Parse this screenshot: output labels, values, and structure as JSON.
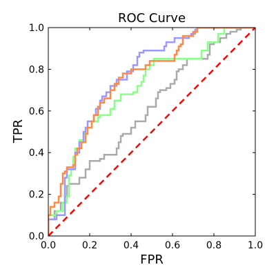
{
  "chart_data": {
    "type": "line",
    "title": "ROC Curve",
    "xlabel": "FPR",
    "ylabel": "TPR",
    "xlim": [
      0.0,
      1.0
    ],
    "ylim": [
      0.0,
      1.0
    ],
    "xticks": [
      "0.0",
      "0.2",
      "0.4",
      "0.6",
      "0.8",
      "1.0"
    ],
    "yticks": [
      "0.0",
      "0.2",
      "0.4",
      "0.6",
      "0.8",
      "1.0"
    ],
    "grid": false,
    "series": [
      {
        "color": "#aaaaaa",
        "step": true,
        "points": [
          [
            0.0,
            0.0
          ],
          [
            0.0,
            0.08
          ],
          [
            0.03,
            0.08
          ],
          [
            0.03,
            0.12
          ],
          [
            0.06,
            0.12
          ],
          [
            0.06,
            0.16
          ],
          [
            0.08,
            0.16
          ],
          [
            0.08,
            0.19
          ],
          [
            0.09,
            0.19
          ],
          [
            0.09,
            0.24
          ],
          [
            0.1,
            0.24
          ],
          [
            0.1,
            0.25
          ],
          [
            0.15,
            0.25
          ],
          [
            0.15,
            0.28
          ],
          [
            0.18,
            0.28
          ],
          [
            0.18,
            0.32
          ],
          [
            0.2,
            0.32
          ],
          [
            0.2,
            0.36
          ],
          [
            0.25,
            0.36
          ],
          [
            0.25,
            0.37
          ],
          [
            0.27,
            0.37
          ],
          [
            0.27,
            0.39
          ],
          [
            0.33,
            0.39
          ],
          [
            0.33,
            0.42
          ],
          [
            0.34,
            0.42
          ],
          [
            0.34,
            0.45
          ],
          [
            0.35,
            0.45
          ],
          [
            0.35,
            0.48
          ],
          [
            0.36,
            0.48
          ],
          [
            0.36,
            0.49
          ],
          [
            0.4,
            0.49
          ],
          [
            0.4,
            0.52
          ],
          [
            0.42,
            0.52
          ],
          [
            0.42,
            0.55
          ],
          [
            0.47,
            0.55
          ],
          [
            0.47,
            0.58
          ],
          [
            0.48,
            0.58
          ],
          [
            0.48,
            0.62
          ],
          [
            0.52,
            0.62
          ],
          [
            0.52,
            0.66
          ],
          [
            0.53,
            0.66
          ],
          [
            0.53,
            0.69
          ],
          [
            0.54,
            0.69
          ],
          [
            0.54,
            0.7
          ],
          [
            0.57,
            0.7
          ],
          [
            0.57,
            0.71
          ],
          [
            0.59,
            0.71
          ],
          [
            0.59,
            0.73
          ],
          [
            0.61,
            0.73
          ],
          [
            0.61,
            0.75
          ],
          [
            0.62,
            0.75
          ],
          [
            0.62,
            0.79
          ],
          [
            0.63,
            0.79
          ],
          [
            0.63,
            0.8
          ],
          [
            0.65,
            0.8
          ],
          [
            0.65,
            0.82
          ],
          [
            0.67,
            0.82
          ],
          [
            0.67,
            0.85
          ],
          [
            0.77,
            0.85
          ],
          [
            0.77,
            0.87
          ],
          [
            0.78,
            0.87
          ],
          [
            0.78,
            0.89
          ],
          [
            0.78,
            0.92
          ],
          [
            0.8,
            0.92
          ],
          [
            0.8,
            0.93
          ],
          [
            0.83,
            0.93
          ],
          [
            0.83,
            0.95
          ],
          [
            0.86,
            0.95
          ],
          [
            0.86,
            0.97
          ],
          [
            0.88,
            0.97
          ],
          [
            0.88,
            0.98
          ],
          [
            0.91,
            0.98
          ],
          [
            0.91,
            0.99
          ],
          [
            0.93,
            0.99
          ],
          [
            0.93,
            1.0
          ],
          [
            1.0,
            1.0
          ]
        ]
      },
      {
        "color": "#88ff88",
        "step": true,
        "points": [
          [
            0.0,
            0.0
          ],
          [
            0.0,
            0.1
          ],
          [
            0.04,
            0.1
          ],
          [
            0.04,
            0.12
          ],
          [
            0.07,
            0.12
          ],
          [
            0.07,
            0.16
          ],
          [
            0.09,
            0.16
          ],
          [
            0.09,
            0.19
          ],
          [
            0.1,
            0.19
          ],
          [
            0.1,
            0.29
          ],
          [
            0.11,
            0.29
          ],
          [
            0.11,
            0.32
          ],
          [
            0.12,
            0.32
          ],
          [
            0.12,
            0.38
          ],
          [
            0.13,
            0.38
          ],
          [
            0.13,
            0.42
          ],
          [
            0.15,
            0.42
          ],
          [
            0.15,
            0.46
          ],
          [
            0.17,
            0.46
          ],
          [
            0.17,
            0.49
          ],
          [
            0.18,
            0.49
          ],
          [
            0.18,
            0.52
          ],
          [
            0.21,
            0.52
          ],
          [
            0.21,
            0.55
          ],
          [
            0.24,
            0.55
          ],
          [
            0.24,
            0.57
          ],
          [
            0.25,
            0.57
          ],
          [
            0.25,
            0.58
          ],
          [
            0.3,
            0.58
          ],
          [
            0.3,
            0.61
          ],
          [
            0.32,
            0.61
          ],
          [
            0.32,
            0.65
          ],
          [
            0.35,
            0.65
          ],
          [
            0.35,
            0.68
          ],
          [
            0.41,
            0.68
          ],
          [
            0.41,
            0.69
          ],
          [
            0.43,
            0.69
          ],
          [
            0.43,
            0.72
          ],
          [
            0.45,
            0.72
          ],
          [
            0.45,
            0.74
          ],
          [
            0.46,
            0.74
          ],
          [
            0.46,
            0.77
          ],
          [
            0.47,
            0.77
          ],
          [
            0.47,
            0.8
          ],
          [
            0.49,
            0.8
          ],
          [
            0.49,
            0.82
          ],
          [
            0.51,
            0.82
          ],
          [
            0.51,
            0.85
          ],
          [
            0.74,
            0.85
          ],
          [
            0.74,
            0.89
          ],
          [
            0.77,
            0.89
          ],
          [
            0.77,
            0.93
          ],
          [
            0.82,
            0.93
          ],
          [
            0.82,
            0.97
          ],
          [
            0.85,
            0.97
          ],
          [
            0.85,
            1.0
          ],
          [
            1.0,
            1.0
          ]
        ]
      },
      {
        "color": "#9999ff",
        "step": true,
        "points": [
          [
            0.0,
            0.0
          ],
          [
            0.0,
            0.08
          ],
          [
            0.04,
            0.08
          ],
          [
            0.04,
            0.1
          ],
          [
            0.08,
            0.1
          ],
          [
            0.08,
            0.28
          ],
          [
            0.09,
            0.28
          ],
          [
            0.09,
            0.32
          ],
          [
            0.13,
            0.32
          ],
          [
            0.13,
            0.4
          ],
          [
            0.15,
            0.4
          ],
          [
            0.15,
            0.45
          ],
          [
            0.17,
            0.45
          ],
          [
            0.17,
            0.5
          ],
          [
            0.18,
            0.5
          ],
          [
            0.18,
            0.52
          ],
          [
            0.19,
            0.52
          ],
          [
            0.19,
            0.55
          ],
          [
            0.22,
            0.55
          ],
          [
            0.22,
            0.58
          ],
          [
            0.23,
            0.58
          ],
          [
            0.23,
            0.61
          ],
          [
            0.25,
            0.61
          ],
          [
            0.25,
            0.65
          ],
          [
            0.26,
            0.65
          ],
          [
            0.26,
            0.67
          ],
          [
            0.28,
            0.67
          ],
          [
            0.28,
            0.69
          ],
          [
            0.3,
            0.69
          ],
          [
            0.3,
            0.72
          ],
          [
            0.33,
            0.72
          ],
          [
            0.33,
            0.75
          ],
          [
            0.38,
            0.75
          ],
          [
            0.38,
            0.79
          ],
          [
            0.41,
            0.79
          ],
          [
            0.41,
            0.82
          ],
          [
            0.43,
            0.82
          ],
          [
            0.43,
            0.86
          ],
          [
            0.44,
            0.86
          ],
          [
            0.44,
            0.88
          ],
          [
            0.46,
            0.88
          ],
          [
            0.46,
            0.89
          ],
          [
            0.56,
            0.89
          ],
          [
            0.56,
            0.91
          ],
          [
            0.57,
            0.91
          ],
          [
            0.57,
            0.93
          ],
          [
            0.61,
            0.93
          ],
          [
            0.61,
            0.95
          ],
          [
            0.68,
            0.95
          ],
          [
            0.68,
            0.96
          ],
          [
            0.69,
            0.96
          ],
          [
            0.69,
            0.97
          ],
          [
            0.71,
            0.97
          ],
          [
            0.71,
            0.99
          ],
          [
            0.72,
            0.99
          ],
          [
            0.72,
            1.0
          ],
          [
            1.0,
            1.0
          ]
        ]
      },
      {
        "color": "#ff8844",
        "step": true,
        "points": [
          [
            0.0,
            0.0
          ],
          [
            0.0,
            0.1
          ],
          [
            0.01,
            0.1
          ],
          [
            0.01,
            0.14
          ],
          [
            0.03,
            0.14
          ],
          [
            0.03,
            0.16
          ],
          [
            0.05,
            0.16
          ],
          [
            0.05,
            0.19
          ],
          [
            0.06,
            0.19
          ],
          [
            0.06,
            0.25
          ],
          [
            0.07,
            0.25
          ],
          [
            0.07,
            0.3
          ],
          [
            0.08,
            0.3
          ],
          [
            0.08,
            0.31
          ],
          [
            0.09,
            0.31
          ],
          [
            0.09,
            0.33
          ],
          [
            0.12,
            0.33
          ],
          [
            0.12,
            0.34
          ],
          [
            0.13,
            0.34
          ],
          [
            0.13,
            0.39
          ],
          [
            0.14,
            0.39
          ],
          [
            0.14,
            0.42
          ],
          [
            0.16,
            0.42
          ],
          [
            0.16,
            0.45
          ],
          [
            0.18,
            0.45
          ],
          [
            0.18,
            0.49
          ],
          [
            0.19,
            0.49
          ],
          [
            0.19,
            0.52
          ],
          [
            0.21,
            0.52
          ],
          [
            0.21,
            0.55
          ],
          [
            0.22,
            0.55
          ],
          [
            0.22,
            0.58
          ],
          [
            0.24,
            0.58
          ],
          [
            0.24,
            0.62
          ],
          [
            0.25,
            0.62
          ],
          [
            0.25,
            0.64
          ],
          [
            0.27,
            0.64
          ],
          [
            0.27,
            0.66
          ],
          [
            0.3,
            0.66
          ],
          [
            0.3,
            0.7
          ],
          [
            0.32,
            0.7
          ],
          [
            0.32,
            0.73
          ],
          [
            0.34,
            0.73
          ],
          [
            0.34,
            0.76
          ],
          [
            0.36,
            0.76
          ],
          [
            0.36,
            0.78
          ],
          [
            0.4,
            0.78
          ],
          [
            0.4,
            0.8
          ],
          [
            0.47,
            0.8
          ],
          [
            0.47,
            0.82
          ],
          [
            0.49,
            0.82
          ],
          [
            0.49,
            0.84
          ],
          [
            0.61,
            0.84
          ],
          [
            0.61,
            0.87
          ],
          [
            0.62,
            0.87
          ],
          [
            0.62,
            0.89
          ],
          [
            0.63,
            0.89
          ],
          [
            0.63,
            0.91
          ],
          [
            0.64,
            0.91
          ],
          [
            0.64,
            0.92
          ],
          [
            0.65,
            0.92
          ],
          [
            0.65,
            0.96
          ],
          [
            0.7,
            0.96
          ],
          [
            0.7,
            0.98
          ],
          [
            0.72,
            0.98
          ],
          [
            0.72,
            1.0
          ],
          [
            1.0,
            1.0
          ]
        ]
      },
      {
        "color": "#ff0000",
        "dashed": true,
        "points": [
          [
            0.0,
            0.0
          ],
          [
            1.0,
            1.0
          ]
        ]
      }
    ]
  }
}
